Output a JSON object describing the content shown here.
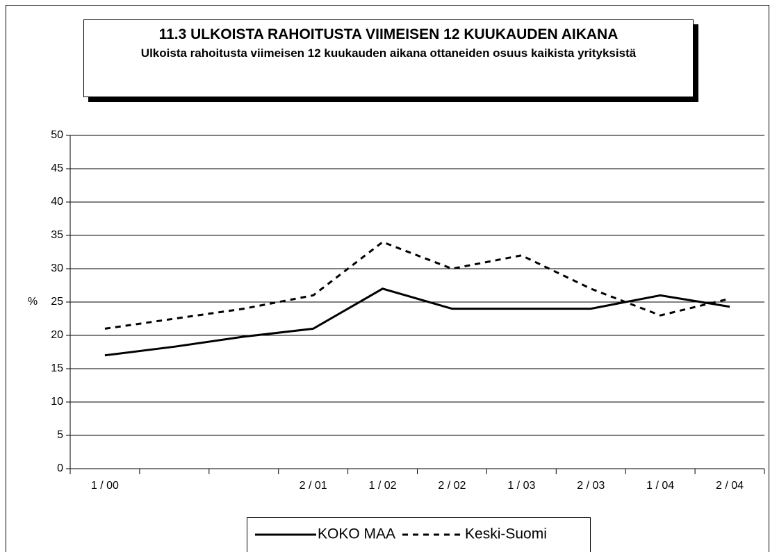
{
  "chart_data": {
    "type": "line",
    "title": "11.3 ULKOISTA RAHOITUSTA VIIMEISEN 12 KUUKAUDEN AIKANA",
    "subtitle": "Ulkoista rahoitusta viimeisen 12 kuukauden aikana ottaneiden osuus kaikista yrityksistä",
    "y_label": "%",
    "categories": [
      "1 / 00",
      null,
      null,
      "2 / 01",
      "1 / 02",
      "2 / 02",
      "1 / 03",
      "2 / 03",
      "1 / 04",
      "2 / 04"
    ],
    "series": [
      {
        "name": "KOKO MAA",
        "color": "#000000",
        "linestyle": "solid",
        "values": [
          17,
          18.3,
          19.8,
          21,
          27,
          24,
          24,
          24,
          26,
          24.3
        ]
      },
      {
        "name": "Keski-Suomi",
        "color": "#000000",
        "linestyle": "dashed",
        "values": [
          21,
          22.5,
          24,
          26,
          34,
          30,
          32,
          27,
          23,
          25.5
        ]
      }
    ],
    "ylim": [
      0,
      50
    ],
    "yticks": [
      0,
      5,
      10,
      15,
      20,
      25,
      30,
      35,
      40,
      45,
      50
    ],
    "grid": true,
    "legend": "bottom"
  }
}
